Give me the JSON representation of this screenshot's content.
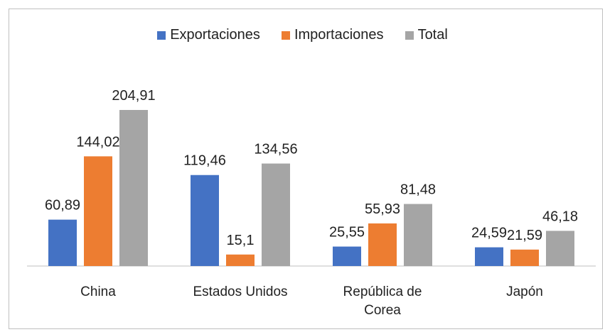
{
  "chart_data": {
    "type": "bar",
    "categories": [
      "China",
      "Estados Unidos",
      "República de Corea",
      "Japón"
    ],
    "series": [
      {
        "name": "Exportaciones",
        "color": "#4472c4",
        "values": [
          60.89,
          119.46,
          25.55,
          24.59
        ],
        "value_labels": [
          "60,89",
          "119,46",
          "25,55",
          "24,59"
        ]
      },
      {
        "name": "Importaciones",
        "color": "#ed7d31",
        "values": [
          144.02,
          15.1,
          55.93,
          21.59
        ],
        "value_labels": [
          "144,02",
          "15,1",
          "55,93",
          "21,59"
        ]
      },
      {
        "name": "Total",
        "color": "#a5a5a5",
        "values": [
          204.91,
          134.56,
          81.48,
          46.18
        ],
        "value_labels": [
          "204,91",
          "134,56",
          "81,48",
          "46,18"
        ]
      }
    ],
    "legend": "top"
  }
}
